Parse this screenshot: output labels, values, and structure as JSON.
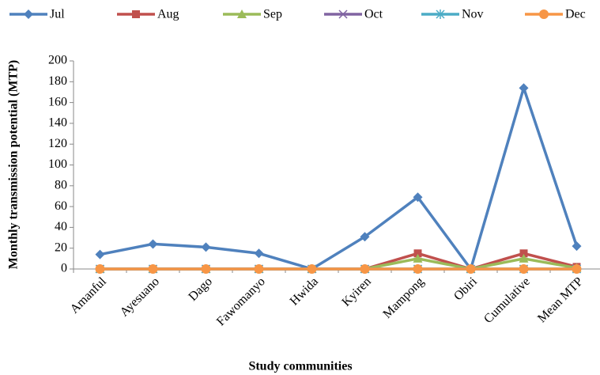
{
  "chart_data": {
    "type": "line",
    "x_label": "Study communities",
    "y_label": "Monthly transmission potential (MTP)",
    "categories": [
      "Amanful",
      "Ayesuano",
      "Dago",
      "Fawomanyo",
      "Hwida",
      "Kyiren",
      "Mampong",
      "Obiri",
      "Cumulative",
      "Mean MTP"
    ],
    "series": [
      {
        "name": "Jul",
        "color": "#4f81bd",
        "marker": "diamond",
        "values": [
          14,
          24,
          21,
          15,
          0,
          31,
          69,
          0,
          174,
          22
        ]
      },
      {
        "name": "Aug",
        "color": "#c0504d",
        "marker": "square",
        "values": [
          0,
          0,
          0,
          0,
          0,
          0,
          15,
          0,
          15,
          2
        ]
      },
      {
        "name": "Sep",
        "color": "#9bbb59",
        "marker": "triangle",
        "values": [
          0,
          0,
          0,
          0,
          0,
          0,
          10,
          0,
          10,
          1
        ]
      },
      {
        "name": "Oct",
        "color": "#8064a2",
        "marker": "x",
        "values": [
          0,
          0,
          0,
          0,
          0,
          0,
          0,
          0,
          0,
          0
        ]
      },
      {
        "name": "Nov",
        "color": "#4bacc6",
        "marker": "star",
        "values": [
          0,
          0,
          0,
          0,
          0,
          0,
          0,
          0,
          0,
          0
        ]
      },
      {
        "name": "Dec",
        "color": "#f79646",
        "marker": "circle",
        "values": [
          0,
          0,
          0,
          0,
          0,
          0,
          0,
          0,
          0,
          0
        ]
      }
    ],
    "ylim": [
      0,
      200
    ],
    "yticks": [
      0,
      20,
      40,
      60,
      80,
      100,
      120,
      140,
      160,
      180,
      200
    ],
    "grid": false,
    "legend": "top"
  }
}
